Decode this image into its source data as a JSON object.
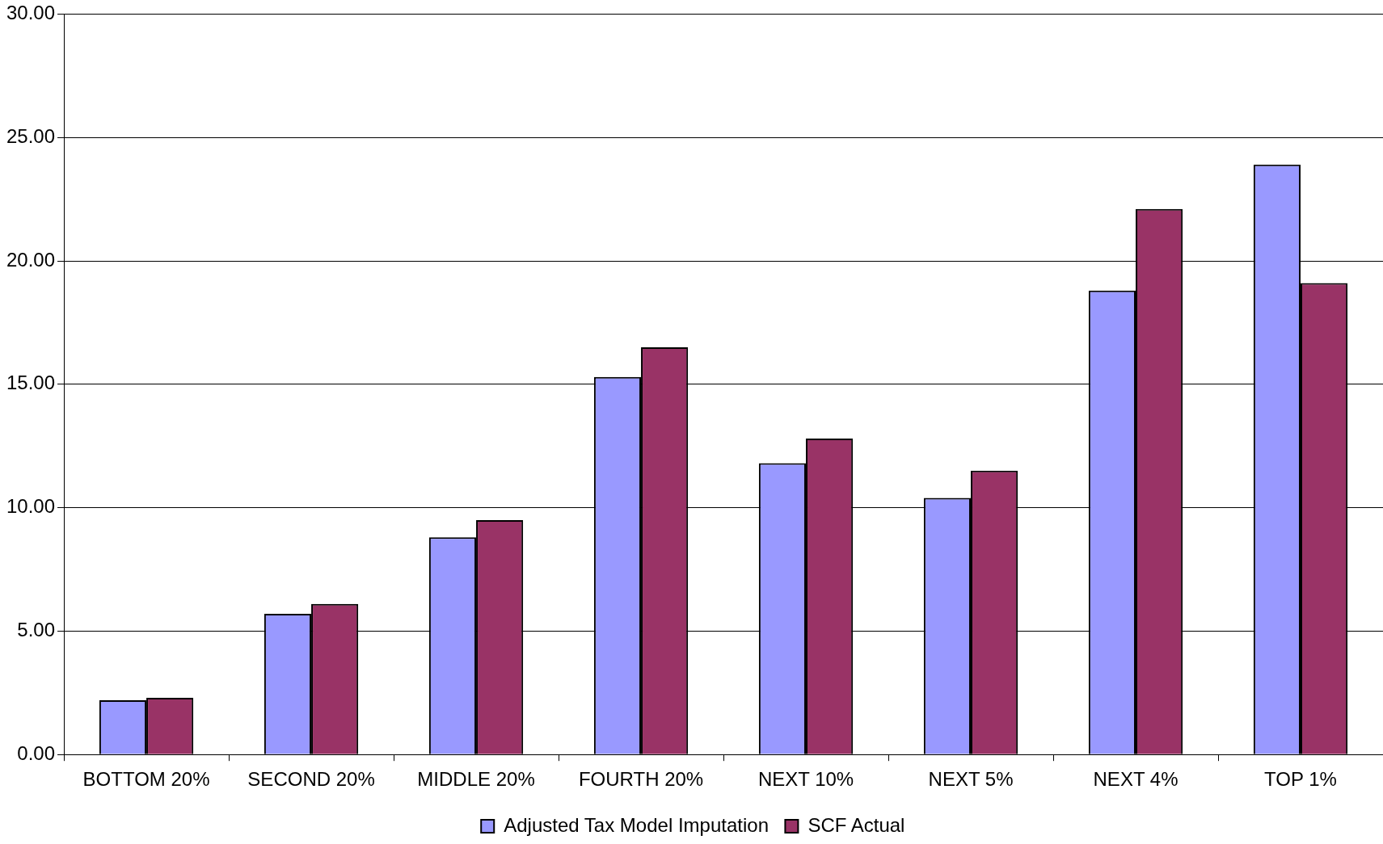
{
  "chart_data": {
    "type": "bar",
    "categories": [
      "BOTTOM 20%",
      "SECOND 20%",
      "MIDDLE 20%",
      "FOURTH 20%",
      "NEXT 10%",
      "NEXT 5%",
      "NEXT 4%",
      "TOP 1%"
    ],
    "series": [
      {
        "name": "Adjusted Tax Model Imputation",
        "color": "#9999ff",
        "values": [
          2.2,
          5.7,
          8.8,
          15.3,
          11.8,
          10.4,
          18.8,
          23.9
        ]
      },
      {
        "name": "SCF Actual",
        "color": "#993366",
        "values": [
          2.3,
          6.1,
          9.5,
          16.5,
          12.8,
          11.5,
          22.1,
          19.1
        ]
      }
    ],
    "ylim": [
      0,
      30
    ],
    "yticks": [
      {
        "value": 0,
        "label": "0.00"
      },
      {
        "value": 5,
        "label": "5.00"
      },
      {
        "value": 10,
        "label": "10.00"
      },
      {
        "value": 15,
        "label": "15.00"
      },
      {
        "value": 20,
        "label": "20.00"
      },
      {
        "value": 25,
        "label": "25.00"
      },
      {
        "value": 30,
        "label": "30.00"
      }
    ],
    "grid": "y",
    "legend": "bottom"
  }
}
